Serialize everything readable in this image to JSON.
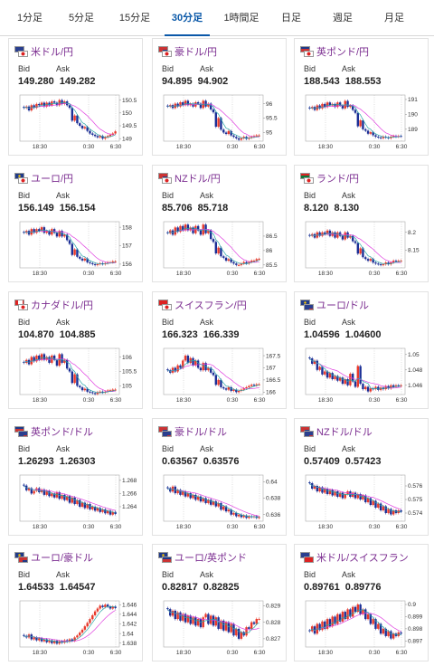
{
  "tabs": [
    {
      "label": "1分足",
      "active": false
    },
    {
      "label": "5分足",
      "active": false
    },
    {
      "label": "15分足",
      "active": false
    },
    {
      "label": "30分足",
      "active": true
    },
    {
      "label": "1時間足",
      "active": false
    },
    {
      "label": "日足",
      "active": false
    },
    {
      "label": "週足",
      "active": false
    },
    {
      "label": "月足",
      "active": false
    }
  ],
  "labels": {
    "bid": "Bid",
    "ask": "Ask"
  },
  "colors": {
    "accent": "#0a58a8",
    "pair_name": "#7b2d90",
    "up": "#e8392b",
    "down": "#1c2f96",
    "ma_magenta": "#e040e0",
    "ma_teal": "#2aa6a6"
  },
  "pairs": [
    {
      "name": "米ドル/円",
      "flag_a": "us",
      "flag_b": "jp",
      "bid": "149.280",
      "ask": "149.282",
      "chart": {
        "y_ticks": [
          "150.5",
          "150",
          "149.5",
          "149"
        ],
        "ylim": [
          148.9,
          150.7
        ],
        "x_ticks": [
          "18:30",
          "0:30",
          "6:30"
        ],
        "close": [
          150.2,
          150.25,
          150.1,
          150.3,
          150.2,
          150.35,
          150.3,
          150.4,
          150.25,
          150.4,
          150.3,
          150.45,
          150.4,
          150.3,
          150.5,
          150.35,
          150.45,
          150.3,
          150.2,
          149.7,
          149.9,
          149.6,
          149.5,
          149.4,
          149.45,
          149.3,
          149.2,
          149.15,
          149.1,
          149.05,
          149.1,
          149.0,
          149.05,
          149.1,
          149.15,
          149.2,
          149.28
        ]
      }
    },
    {
      "name": "豪ドル/円",
      "flag_a": "au",
      "flag_b": "jp",
      "bid": "94.895",
      "ask": "94.902",
      "chart": {
        "y_ticks": [
          "96",
          "95.5",
          "95"
        ],
        "ylim": [
          94.7,
          96.3
        ],
        "x_ticks": [
          "18:30",
          "0:30",
          "6:30"
        ],
        "close": [
          95.9,
          95.95,
          95.85,
          96.0,
          95.9,
          96.05,
          95.95,
          96.1,
          95.95,
          96.0,
          95.9,
          96.05,
          96.0,
          95.85,
          96.1,
          95.9,
          96.0,
          95.8,
          95.7,
          95.2,
          95.5,
          95.1,
          95.0,
          94.95,
          95.05,
          94.9,
          94.85,
          94.8,
          94.75,
          94.8,
          94.85,
          94.78,
          94.82,
          94.85,
          94.88,
          94.9,
          94.9
        ]
      }
    },
    {
      "name": "英ポンド/円",
      "flag_a": "gb",
      "flag_b": "jp",
      "bid": "188.543",
      "ask": "188.553",
      "chart": {
        "y_ticks": [
          "191",
          "190",
          "189"
        ],
        "ylim": [
          188.2,
          191.3
        ],
        "x_ticks": [
          "18:30",
          "0:30",
          "6:30"
        ],
        "close": [
          190.4,
          190.5,
          190.3,
          190.6,
          190.4,
          190.7,
          190.5,
          190.8,
          190.6,
          190.7,
          190.5,
          190.8,
          190.6,
          190.4,
          190.9,
          190.5,
          190.6,
          190.3,
          190.1,
          189.2,
          189.6,
          189.0,
          188.9,
          188.7,
          188.8,
          188.6,
          188.5,
          188.45,
          188.4,
          188.5,
          188.45,
          188.4,
          188.5,
          188.55,
          188.5,
          188.55,
          188.54
        ]
      }
    },
    {
      "name": "ユーロ/円",
      "flag_a": "eu",
      "flag_b": "jp",
      "bid": "156.149",
      "ask": "156.154",
      "chart": {
        "y_ticks": [
          "158",
          "157",
          "156"
        ],
        "ylim": [
          155.8,
          158.3
        ],
        "x_ticks": [
          "18:30",
          "0:30",
          "6:30"
        ],
        "close": [
          157.7,
          157.8,
          157.6,
          157.9,
          157.7,
          157.9,
          157.8,
          158.0,
          157.7,
          157.8,
          157.6,
          157.9,
          157.7,
          157.5,
          157.8,
          157.5,
          157.6,
          157.3,
          157.1,
          156.5,
          156.8,
          156.4,
          156.3,
          156.2,
          156.3,
          156.1,
          156.05,
          156.0,
          155.95,
          156.0,
          156.05,
          156.0,
          156.05,
          156.1,
          156.1,
          156.15,
          156.15
        ]
      }
    },
    {
      "name": "NZドル/円",
      "flag_a": "nz",
      "flag_b": "jp",
      "bid": "85.706",
      "ask": "85.718",
      "chart": {
        "y_ticks": [
          "86.5",
          "86",
          "85.5"
        ],
        "ylim": [
          85.4,
          87.0
        ],
        "x_ticks": [
          "18:30",
          "0:30",
          "6:30"
        ],
        "close": [
          86.6,
          86.7,
          86.55,
          86.8,
          86.65,
          86.85,
          86.7,
          86.9,
          86.7,
          86.8,
          86.6,
          86.85,
          86.7,
          86.55,
          86.9,
          86.6,
          86.7,
          86.4,
          86.3,
          85.9,
          86.1,
          85.8,
          85.75,
          85.65,
          85.7,
          85.6,
          85.55,
          85.5,
          85.5,
          85.55,
          85.6,
          85.55,
          85.6,
          85.65,
          85.65,
          85.7,
          85.71
        ]
      }
    },
    {
      "name": "ランド/円",
      "flag_a": "za",
      "flag_b": "jp",
      "bid": "8.120",
      "ask": "8.130",
      "chart": {
        "y_ticks": [
          "8.2",
          "8.15"
        ],
        "ylim": [
          8.1,
          8.23
        ],
        "x_ticks": [
          "18:30",
          "0:30",
          "6:30"
        ],
        "close": [
          8.19,
          8.195,
          8.185,
          8.2,
          8.19,
          8.2,
          8.195,
          8.205,
          8.19,
          8.2,
          8.185,
          8.2,
          8.19,
          8.18,
          8.2,
          8.185,
          8.19,
          8.175,
          8.17,
          8.14,
          8.155,
          8.13,
          8.125,
          8.12,
          8.125,
          8.115,
          8.112,
          8.11,
          8.108,
          8.11,
          8.115,
          8.11,
          8.115,
          8.12,
          8.118,
          8.12,
          8.12
        ]
      }
    },
    {
      "name": "カナダドル/円",
      "flag_a": "ca",
      "flag_b": "jp",
      "bid": "104.870",
      "ask": "104.885",
      "chart": {
        "y_ticks": [
          "106",
          "105.5",
          "105"
        ],
        "ylim": [
          104.7,
          106.3
        ],
        "x_ticks": [
          "18:30",
          "0:30",
          "6:30"
        ],
        "close": [
          105.8,
          105.9,
          105.75,
          106.0,
          105.85,
          106.05,
          105.9,
          106.1,
          105.9,
          106.0,
          105.8,
          106.05,
          105.9,
          105.7,
          106.1,
          105.8,
          105.9,
          105.6,
          105.5,
          105.1,
          105.4,
          105.0,
          104.95,
          104.85,
          104.9,
          104.8,
          104.78,
          104.75,
          104.72,
          104.78,
          104.8,
          104.77,
          104.8,
          104.84,
          104.85,
          104.87,
          104.87
        ]
      }
    },
    {
      "name": "スイスフラン/円",
      "flag_a": "ch",
      "flag_b": "jp",
      "bid": "166.323",
      "ask": "166.339",
      "chart": {
        "y_ticks": [
          "167.5",
          "167",
          "166.5",
          "166"
        ],
        "ylim": [
          165.9,
          167.8
        ],
        "x_ticks": [
          "18:30",
          "0:30",
          "6:30"
        ],
        "close": [
          166.9,
          166.8,
          167.0,
          166.85,
          167.1,
          167.0,
          167.3,
          167.5,
          167.2,
          167.4,
          167.1,
          167.3,
          167.0,
          166.9,
          167.2,
          166.9,
          167.0,
          166.8,
          166.7,
          166.3,
          166.5,
          166.2,
          166.15,
          166.1,
          166.2,
          166.05,
          166.1,
          166.0,
          166.05,
          166.1,
          166.15,
          166.2,
          166.25,
          166.3,
          166.28,
          166.32,
          166.32
        ]
      }
    },
    {
      "name": "ユーロ/ドル",
      "flag_a": "eu",
      "flag_b": "us",
      "bid": "1.04596",
      "ask": "1.04600",
      "chart": {
        "y_ticks": [
          "1.05",
          "1.048",
          "1.046"
        ],
        "ylim": [
          1.0448,
          1.0508
        ],
        "x_ticks": [
          "18:30",
          "0:30",
          "6:30"
        ],
        "close": [
          1.0495,
          1.0488,
          1.0492,
          1.048,
          1.0484,
          1.0474,
          1.0478,
          1.047,
          1.0476,
          1.0468,
          1.0472,
          1.0466,
          1.047,
          1.0462,
          1.0468,
          1.046,
          1.0475,
          1.0465,
          1.0458,
          1.0485,
          1.0462,
          1.0455,
          1.0458,
          1.0452,
          1.0456,
          1.0455,
          1.0458,
          1.0454,
          1.0457,
          1.0455,
          1.0459,
          1.0456,
          1.046,
          1.0458,
          1.046,
          1.0459,
          1.046
        ]
      }
    },
    {
      "name": "英ポンド/ドル",
      "flag_a": "gb",
      "flag_b": "us",
      "bid": "1.26293",
      "ask": "1.26303",
      "chart": {
        "y_ticks": [
          "1.268",
          "1.266",
          "1.264"
        ],
        "ylim": [
          1.2618,
          1.2688
        ],
        "x_ticks": [
          "18:30",
          "0:30",
          "6:30"
        ],
        "close": [
          1.2672,
          1.2665,
          1.2668,
          1.266,
          1.2664,
          1.2668,
          1.2662,
          1.2666,
          1.2658,
          1.2664,
          1.2656,
          1.266,
          1.2654,
          1.2662,
          1.2652,
          1.2658,
          1.265,
          1.2656,
          1.2646,
          1.2654,
          1.2644,
          1.265,
          1.264,
          1.2646,
          1.2638,
          1.2644,
          1.2636,
          1.264,
          1.2634,
          1.2638,
          1.2632,
          1.2636,
          1.263,
          1.2634,
          1.2628,
          1.2632,
          1.2629
        ]
      }
    },
    {
      "name": "豪ドル/ドル",
      "flag_a": "au",
      "flag_b": "us",
      "bid": "0.63567",
      "ask": "0.63576",
      "chart": {
        "y_ticks": [
          "0.64",
          "0.638",
          "0.636"
        ],
        "ylim": [
          0.6352,
          0.6408
        ],
        "x_ticks": [
          "18:30",
          "0:30",
          "6:30"
        ],
        "close": [
          0.6392,
          0.6388,
          0.6394,
          0.6386,
          0.639,
          0.6384,
          0.6388,
          0.6382,
          0.6386,
          0.638,
          0.6384,
          0.6378,
          0.6382,
          0.6376,
          0.638,
          0.6374,
          0.6378,
          0.6372,
          0.6376,
          0.637,
          0.6374,
          0.6366,
          0.637,
          0.6364,
          0.6366,
          0.636,
          0.6362,
          0.6358,
          0.636,
          0.6357,
          0.6359,
          0.6356,
          0.6358,
          0.6357,
          0.6358,
          0.6356,
          0.6357
        ]
      }
    },
    {
      "name": "NZドル/ドル",
      "flag_a": "nz",
      "flag_b": "us",
      "bid": "0.57409",
      "ask": "0.57423",
      "chart": {
        "y_ticks": [
          "0.576",
          "0.575",
          "0.574"
        ],
        "ylim": [
          0.5734,
          0.5768
        ],
        "x_ticks": [
          "18:30",
          "0:30",
          "6:30"
        ],
        "close": [
          0.5762,
          0.5758,
          0.576,
          0.5756,
          0.5759,
          0.5755,
          0.5758,
          0.5754,
          0.5757,
          0.5753,
          0.5756,
          0.5752,
          0.5755,
          0.5751,
          0.5754,
          0.5756,
          0.5752,
          0.5755,
          0.5751,
          0.5754,
          0.575,
          0.5753,
          0.5748,
          0.5751,
          0.5746,
          0.5749,
          0.5744,
          0.5747,
          0.5742,
          0.5745,
          0.574,
          0.5743,
          0.5739,
          0.5742,
          0.574,
          0.5742,
          0.5741
        ]
      }
    },
    {
      "name": "ユーロ/豪ドル",
      "flag_a": "eu",
      "flag_b": "au",
      "bid": "1.64533",
      "ask": "1.64547",
      "chart": {
        "y_ticks": [
          "1.646",
          "1.644",
          "1.642",
          "1.64",
          "1.638"
        ],
        "ylim": [
          1.6372,
          1.6468
        ],
        "x_ticks": [
          "18:30",
          "0:30",
          "6:30"
        ],
        "close": [
          1.6395,
          1.6392,
          1.6398,
          1.6388,
          1.6392,
          1.6386,
          1.639,
          1.6384,
          1.6388,
          1.6382,
          1.6386,
          1.638,
          1.6385,
          1.6379,
          1.6384,
          1.6381,
          1.6386,
          1.6383,
          1.6388,
          1.6385,
          1.6392,
          1.6396,
          1.6402,
          1.6408,
          1.6415,
          1.6422,
          1.643,
          1.6438,
          1.6446,
          1.6452,
          1.6458,
          1.6455,
          1.646,
          1.6456,
          1.6452,
          1.6456,
          1.6453
        ]
      }
    },
    {
      "name": "ユーロ/英ポンド",
      "flag_a": "eu",
      "flag_b": "gb",
      "bid": "0.82817",
      "ask": "0.82825",
      "chart": {
        "y_ticks": [
          "0.829",
          "0.828",
          "0.827"
        ],
        "ylim": [
          0.8265,
          0.8293
        ],
        "x_ticks": [
          "18:30",
          "0:30",
          "6:30"
        ],
        "close": [
          0.8288,
          0.8284,
          0.8287,
          0.8282,
          0.8286,
          0.8281,
          0.8285,
          0.828,
          0.8284,
          0.8279,
          0.8283,
          0.8278,
          0.8282,
          0.8277,
          0.8283,
          0.8285,
          0.8279,
          0.8284,
          0.8278,
          0.8283,
          0.8276,
          0.8281,
          0.8275,
          0.828,
          0.8274,
          0.8279,
          0.8272,
          0.8276,
          0.827,
          0.8274,
          0.8272,
          0.8277,
          0.8276,
          0.828,
          0.8279,
          0.8282,
          0.8282
        ]
      }
    },
    {
      "name": "米ドル/スイスフラン",
      "flag_a": "us",
      "flag_b": "ch",
      "bid": "0.89761",
      "ask": "0.89776",
      "chart": {
        "y_ticks": [
          "0.9",
          "0.899",
          "0.898",
          "0.897"
        ],
        "ylim": [
          0.8965,
          0.9003
        ],
        "x_ticks": [
          "18:30",
          "0:30",
          "6:30"
        ],
        "close": [
          0.8978,
          0.8982,
          0.8976,
          0.8984,
          0.8979,
          0.8986,
          0.898,
          0.8988,
          0.8982,
          0.899,
          0.8984,
          0.8992,
          0.8986,
          0.8994,
          0.8988,
          0.8996,
          0.899,
          0.8998,
          0.8994,
          0.9,
          0.8992,
          0.8996,
          0.8988,
          0.8992,
          0.8984,
          0.8988,
          0.898,
          0.8984,
          0.8976,
          0.898,
          0.8974,
          0.8978,
          0.8972,
          0.8976,
          0.8974,
          0.8977,
          0.8976
        ]
      }
    }
  ]
}
